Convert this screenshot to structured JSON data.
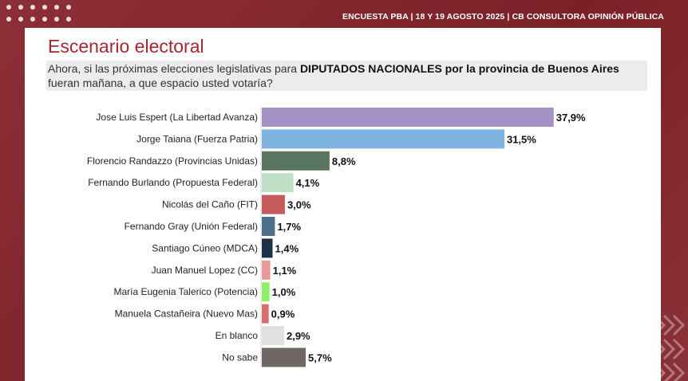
{
  "header": {
    "text": "ENCUESTA PBA | 18 Y 19  AGOSTO 2025 | CB CONSULTORA OPINIÓN PÚBLICA"
  },
  "title": "Escenario electoral",
  "question": {
    "prefix": "Ahora, si las próximas elecciones legislativas para ",
    "emphasis": "DIPUTADOS NACIONALES por la provincia de Buenos Aires",
    "suffix": " fueran mañana, a que espacio usted votaría?"
  },
  "colors": {
    "background": "#8a2a31",
    "title": "#a8262f"
  },
  "chart_data": {
    "type": "bar",
    "orientation": "horizontal",
    "unit": "%",
    "grid": false,
    "legend": "none",
    "categories": [
      "Jose Luis Espert (La Libertad Avanza)",
      "Jorge Taiana (Fuerza Patria)",
      "Florencio Randazzo (Provincias Unidas)",
      "Fernando Burlando (Propuesta Federal)",
      "Nicolás del Caño (FIT)",
      "Fernando Gray (Unión Federal)",
      "Santiago Cúneo (MDCA)",
      "Juan Manuel Lopez (CC)",
      "María Eugenia Talerico (Potencia)",
      "Manuela Castañeira (Nuevo Mas)",
      "En blanco",
      "No sabe"
    ],
    "values": [
      37.9,
      31.5,
      8.8,
      4.1,
      3.0,
      1.7,
      1.4,
      1.1,
      1.0,
      0.9,
      2.9,
      5.7
    ],
    "value_labels": [
      "37,9%",
      "31,5%",
      "8,8%",
      "4,1%",
      "3,0%",
      "1,7%",
      "1,4%",
      "1,1%",
      "1,0%",
      "0,9%",
      "2,9%",
      "5,7%"
    ],
    "colors": [
      "#a592c4",
      "#7fb4e1",
      "#5a7561",
      "#bfe0c6",
      "#c65a5c",
      "#4d6f8c",
      "#1d2f49",
      "#e79a9a",
      "#8ef06a",
      "#d96f6d",
      "#e3e0e0",
      "#6f6666"
    ]
  }
}
